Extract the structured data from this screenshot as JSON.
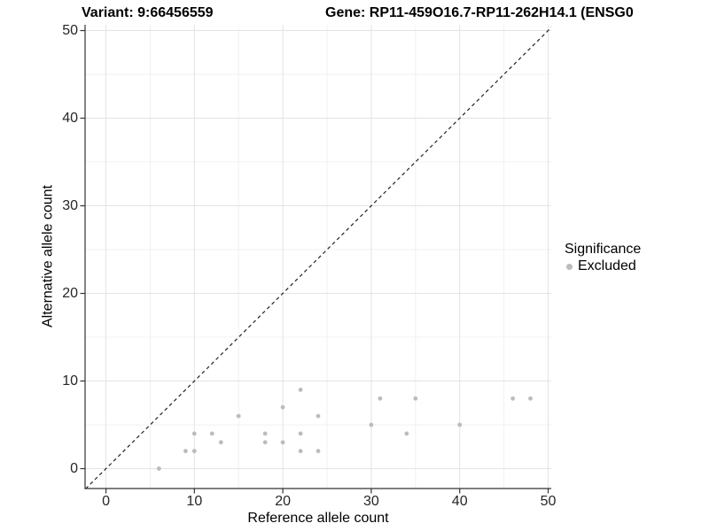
{
  "titles": {
    "variant": "Variant: 9:66456559",
    "gene": "Gene: RP11-459O16.7-RP11-262H14.1 (ENSG0"
  },
  "chart_data": {
    "type": "scatter",
    "xlabel": "Reference allele count",
    "ylabel": "Alternative allele count",
    "xlim": [
      -2.36,
      50.35
    ],
    "ylim": [
      -2.27,
      50.66
    ],
    "x_ticks": [
      0,
      10,
      20,
      30,
      40,
      50
    ],
    "y_ticks": [
      0,
      10,
      20,
      30,
      40,
      50
    ],
    "x_minor": [
      5,
      15,
      25,
      35,
      45
    ],
    "y_minor": [
      5,
      15,
      25,
      35,
      45
    ],
    "grid": true,
    "identity_line": {
      "style": "dashed",
      "slope": 1,
      "intercept": 0
    },
    "series": [
      {
        "name": "Excluded",
        "color": "#bcbcbc",
        "points": [
          [
            6,
            0
          ],
          [
            9,
            2
          ],
          [
            10,
            2
          ],
          [
            10,
            4
          ],
          [
            12,
            4
          ],
          [
            13,
            3
          ],
          [
            15,
            6
          ],
          [
            18,
            3
          ],
          [
            18,
            4
          ],
          [
            20,
            3
          ],
          [
            20,
            7
          ],
          [
            22,
            2
          ],
          [
            22,
            4
          ],
          [
            22,
            9
          ],
          [
            24,
            2
          ],
          [
            24,
            6
          ],
          [
            30,
            5
          ],
          [
            31,
            8
          ],
          [
            34,
            4
          ],
          [
            35,
            8
          ],
          [
            40,
            5
          ],
          [
            46,
            8
          ],
          [
            48,
            8
          ]
        ]
      }
    ],
    "legend": {
      "title": "Significance",
      "position": "right",
      "items": [
        {
          "label": "Excluded",
          "color": "#bcbcbc"
        }
      ]
    }
  },
  "colors": {
    "point": "#bcbcbc",
    "grid_major": "#e3e3e3",
    "grid_minor": "#f0f0f0",
    "axis": "#333333",
    "identity_line": "#222222",
    "tick_text": "#262626",
    "text": "#000000"
  }
}
